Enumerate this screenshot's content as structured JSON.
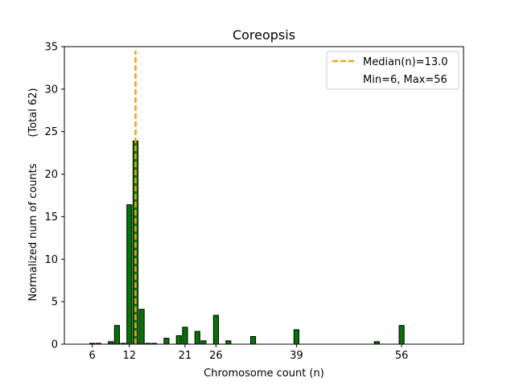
{
  "chart_data": {
    "type": "bar",
    "title": "Coreopsis",
    "xlabel": "Chromosome count (n)",
    "ylabel": "Normalized num of counts",
    "ylabel_secondary": "(Total 62)",
    "xlim": [
      1.5,
      66
    ],
    "ylim": [
      0,
      35
    ],
    "bar_width": 0.8,
    "x_ticks": [
      6,
      12,
      21,
      26,
      39,
      56
    ],
    "x_tick_labels": [
      "6",
      "12",
      "21",
      "26",
      "39",
      "56"
    ],
    "y_ticks": [
      0,
      5,
      10,
      15,
      20,
      25,
      30,
      35
    ],
    "y_tick_labels": [
      "0",
      "5",
      "10",
      "15",
      "20",
      "25",
      "30",
      "35"
    ],
    "median": 13.0,
    "bars": [
      {
        "x": 6,
        "value": 0.1
      },
      {
        "x": 7,
        "value": 0.1
      },
      {
        "x": 9,
        "value": 0.3
      },
      {
        "x": 10,
        "value": 2.2
      },
      {
        "x": 11,
        "value": 0.1
      },
      {
        "x": 12,
        "value": 16.4
      },
      {
        "x": 13,
        "value": 23.9
      },
      {
        "x": 14,
        "value": 4.1
      },
      {
        "x": 15,
        "value": 0.1
      },
      {
        "x": 16,
        "value": 0.1
      },
      {
        "x": 18,
        "value": 0.7
      },
      {
        "x": 20,
        "value": 1.0
      },
      {
        "x": 21,
        "value": 2.0
      },
      {
        "x": 23,
        "value": 1.5
      },
      {
        "x": 24,
        "value": 0.4
      },
      {
        "x": 26,
        "value": 3.4
      },
      {
        "x": 28,
        "value": 0.4
      },
      {
        "x": 32,
        "value": 0.9
      },
      {
        "x": 39,
        "value": 1.7
      },
      {
        "x": 52,
        "value": 0.3
      },
      {
        "x": 56,
        "value": 2.2
      }
    ],
    "legend": {
      "position": "top-right",
      "entries": [
        "Median(n)=13.0",
        "Min=6, Max=56"
      ]
    },
    "colors": {
      "bar_fill": "#007500",
      "bar_edge": "#000000",
      "median_line": "#f0a30a",
      "axis": "#000000"
    }
  }
}
